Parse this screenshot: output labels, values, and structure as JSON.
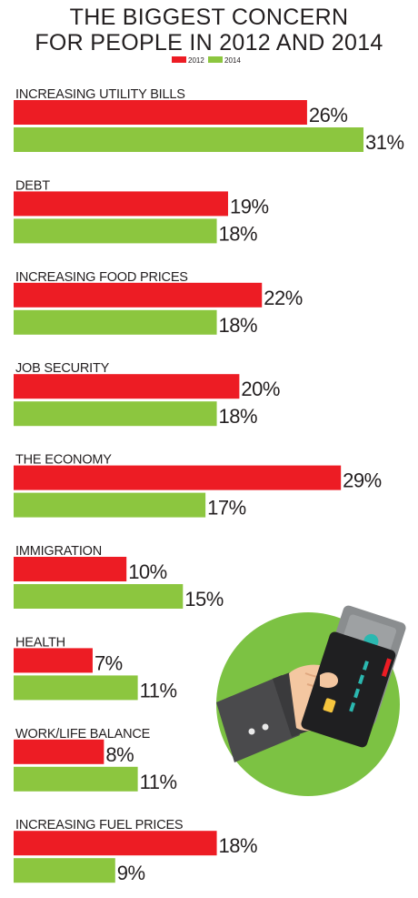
{
  "chart_data": {
    "type": "bar",
    "orientation": "horizontal",
    "title_lines": [
      "THE BIGGEST CONCERN",
      "FOR PEOPLE IN 2012 AND 2014"
    ],
    "legend_position": "top-center",
    "categories": [
      "INCREASING UTILITY BILLS",
      "DEBT",
      "INCREASING FOOD PRICES",
      "JOB SECURITY",
      "THE ECONOMY",
      "IMMIGRATION",
      "HEALTH",
      "WORK/LIFE BALANCE",
      "INCREASING FUEL PRICES"
    ],
    "series": [
      {
        "name": "2012",
        "color": "#ed1c24",
        "values": [
          26,
          19,
          22,
          20,
          29,
          10,
          7,
          8,
          18
        ]
      },
      {
        "name": "2014",
        "color": "#8cc63f",
        "values": [
          31,
          18,
          18,
          18,
          17,
          15,
          11,
          11,
          9
        ]
      }
    ],
    "value_suffix": "%",
    "grid": false,
    "axes_visible": false
  },
  "illustration": {
    "description_icon": "hand-holding-credit-cards-icon",
    "circle_color": "#7cc243"
  }
}
